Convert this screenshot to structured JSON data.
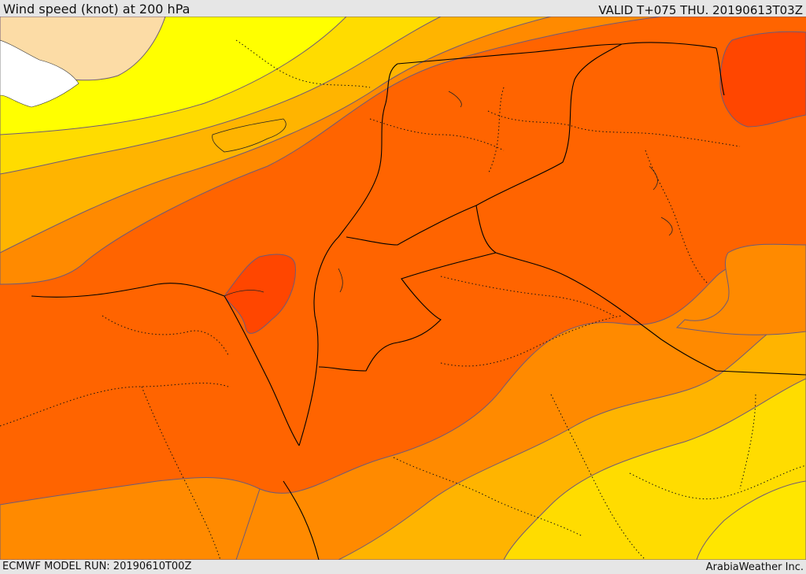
{
  "header": {
    "title": "Wind speed (knot) at 200 hPa",
    "valid_time": "VALID T+075 THU. 20190613T03Z"
  },
  "footer": {
    "model_run": "ECMWF MODEL RUN: 20190610T00Z",
    "credit": "ArabiaWeather Inc."
  },
  "palette": {
    "land_light": "#fcdca6",
    "sea_white": "#ffffff",
    "yellow": "#ffff00",
    "gold": "#ffdc00",
    "amber": "#ffb400",
    "orange": "#ff8a00",
    "deep_orange": "#ff6400",
    "red_orange": "#ff4600",
    "contour": "#6e5a78",
    "border": "#000000"
  }
}
